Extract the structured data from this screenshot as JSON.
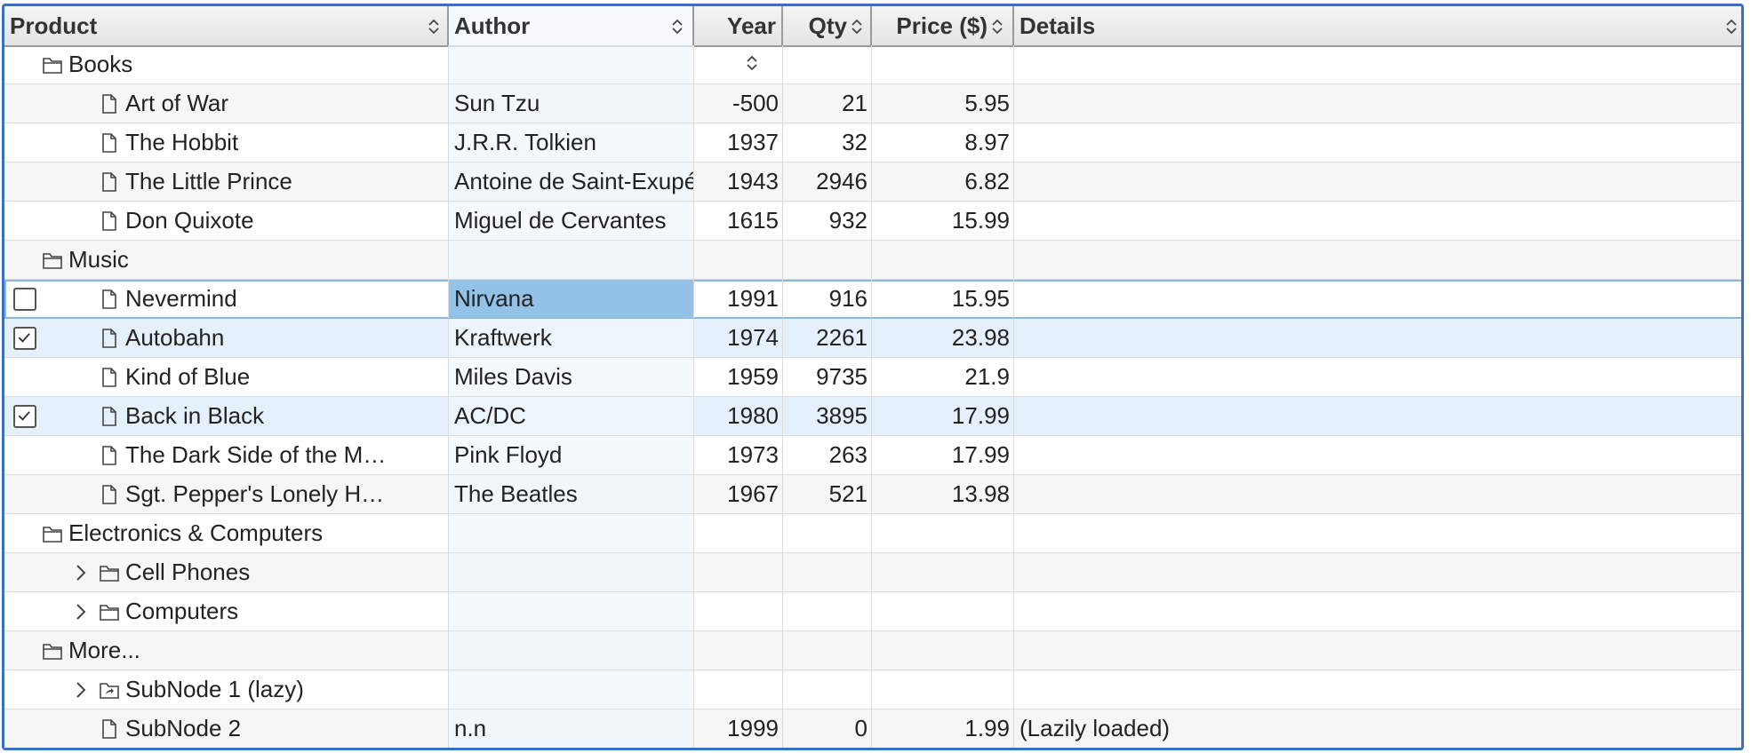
{
  "columns": {
    "product": "Product",
    "author": "Author",
    "year": "Year",
    "qty": "Qty",
    "price": "Price ($)",
    "details": "Details"
  },
  "colors": {
    "border_accent": "#3b6fc0",
    "selected_row": "#e6f0fa",
    "focused_cell": "#92c2e8"
  },
  "rows": [
    {
      "type": "folder",
      "level": 1,
      "title": "Books",
      "year_sort_icon": "chevron-up-down-icon"
    },
    {
      "type": "doc",
      "level": 2,
      "title": "Art of War",
      "author": "Sun Tzu",
      "year": "-500",
      "qty": "21",
      "price": "5.95",
      "details": ""
    },
    {
      "type": "doc",
      "level": 2,
      "title": "The Hobbit",
      "author": "J.R.R. Tolkien",
      "year": "1937",
      "qty": "32",
      "price": "8.97",
      "details": ""
    },
    {
      "type": "doc",
      "level": 2,
      "title": "The Little Prince",
      "author": "Antoine de Saint-Exupéry",
      "year": "1943",
      "qty": "2946",
      "price": "6.82",
      "details": ""
    },
    {
      "type": "doc",
      "level": 2,
      "title": "Don Quixote",
      "author": "Miguel de Cervantes",
      "year": "1615",
      "qty": "932",
      "price": "15.99",
      "details": ""
    },
    {
      "type": "folder",
      "level": 1,
      "title": "Music"
    },
    {
      "type": "doc",
      "level": 2,
      "title": "Nevermind",
      "author": "Nirvana",
      "year": "1991",
      "qty": "916",
      "price": "15.95",
      "details": "",
      "checkbox": "unchecked",
      "active": true
    },
    {
      "type": "doc",
      "level": 2,
      "title": "Autobahn",
      "author": "Kraftwerk",
      "year": "1974",
      "qty": "2261",
      "price": "23.98",
      "details": "",
      "checkbox": "checked"
    },
    {
      "type": "doc",
      "level": 2,
      "title": "Kind of Blue",
      "author": "Miles Davis",
      "year": "1959",
      "qty": "9735",
      "price": "21.9",
      "details": ""
    },
    {
      "type": "doc",
      "level": 2,
      "title": "Back in Black",
      "author": "AC/DC",
      "year": "1980",
      "qty": "3895",
      "price": "17.99",
      "details": "",
      "checkbox": "checked"
    },
    {
      "type": "doc",
      "level": 2,
      "title": "The Dark Side of the M…",
      "author": "Pink Floyd",
      "year": "1973",
      "qty": "263",
      "price": "17.99",
      "details": ""
    },
    {
      "type": "doc",
      "level": 2,
      "title": "Sgt. Pepper's Lonely H…",
      "author": "The Beatles",
      "year": "1967",
      "qty": "521",
      "price": "13.98",
      "details": ""
    },
    {
      "type": "folder",
      "level": 1,
      "title": "Electronics & Computers"
    },
    {
      "type": "folder",
      "level": 2,
      "title": "Cell Phones",
      "expander": "collapsed"
    },
    {
      "type": "folder",
      "level": 2,
      "title": "Computers",
      "expander": "collapsed"
    },
    {
      "type": "folder",
      "level": 1,
      "title": "More..."
    },
    {
      "type": "lazy",
      "level": 2,
      "title": "SubNode 1 (lazy)",
      "expander": "collapsed"
    },
    {
      "type": "doc",
      "level": 2,
      "title": "SubNode 2",
      "author": "n.n",
      "year": "1999",
      "qty": "0",
      "price": "1.99",
      "details": "(Lazily loaded)"
    }
  ]
}
